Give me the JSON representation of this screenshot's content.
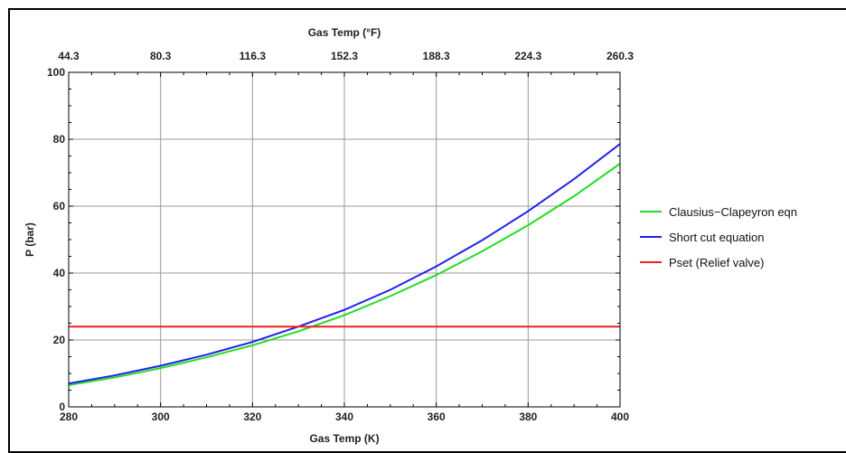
{
  "chart_data": {
    "type": "line",
    "xlabel": "Gas Temp (K)",
    "x2label": "Gas Temp (°F)",
    "ylabel": "P (bar)",
    "xlim": [
      280,
      400
    ],
    "ylim": [
      0,
      100
    ],
    "x_ticks": [
      280,
      300,
      320,
      340,
      360,
      380,
      400
    ],
    "x2_ticks": [
      "44.3",
      "80.3",
      "116.3",
      "152.3",
      "188.3",
      "224.3",
      "260.3"
    ],
    "y_ticks": [
      0,
      20,
      40,
      60,
      80,
      100
    ],
    "grid": true,
    "legend_position": "right",
    "x": [
      280,
      290,
      300,
      310,
      320,
      330,
      340,
      350,
      360,
      370,
      380,
      390,
      400
    ],
    "series": [
      {
        "name": "Clausius−Clapeyron eqn",
        "color": "#22dd22",
        "values": [
          6.5,
          8.8,
          11.6,
          14.8,
          18.4,
          22.6,
          27.4,
          33.1,
          39.4,
          46.5,
          54.3,
          63.0,
          72.7
        ]
      },
      {
        "name": "Short cut equation",
        "color": "#2020ee",
        "values": [
          7.0,
          9.4,
          12.3,
          15.6,
          19.4,
          24.0,
          29.0,
          35.0,
          42.0,
          49.8,
          58.5,
          68.1,
          78.6
        ]
      },
      {
        "name": "Pset (Relief valve)",
        "color": "#ee2020",
        "values": [
          24.0,
          24.0,
          24.0,
          24.0,
          24.0,
          24.0,
          24.0,
          24.0,
          24.0,
          24.0,
          24.0,
          24.0,
          24.0
        ]
      }
    ]
  }
}
